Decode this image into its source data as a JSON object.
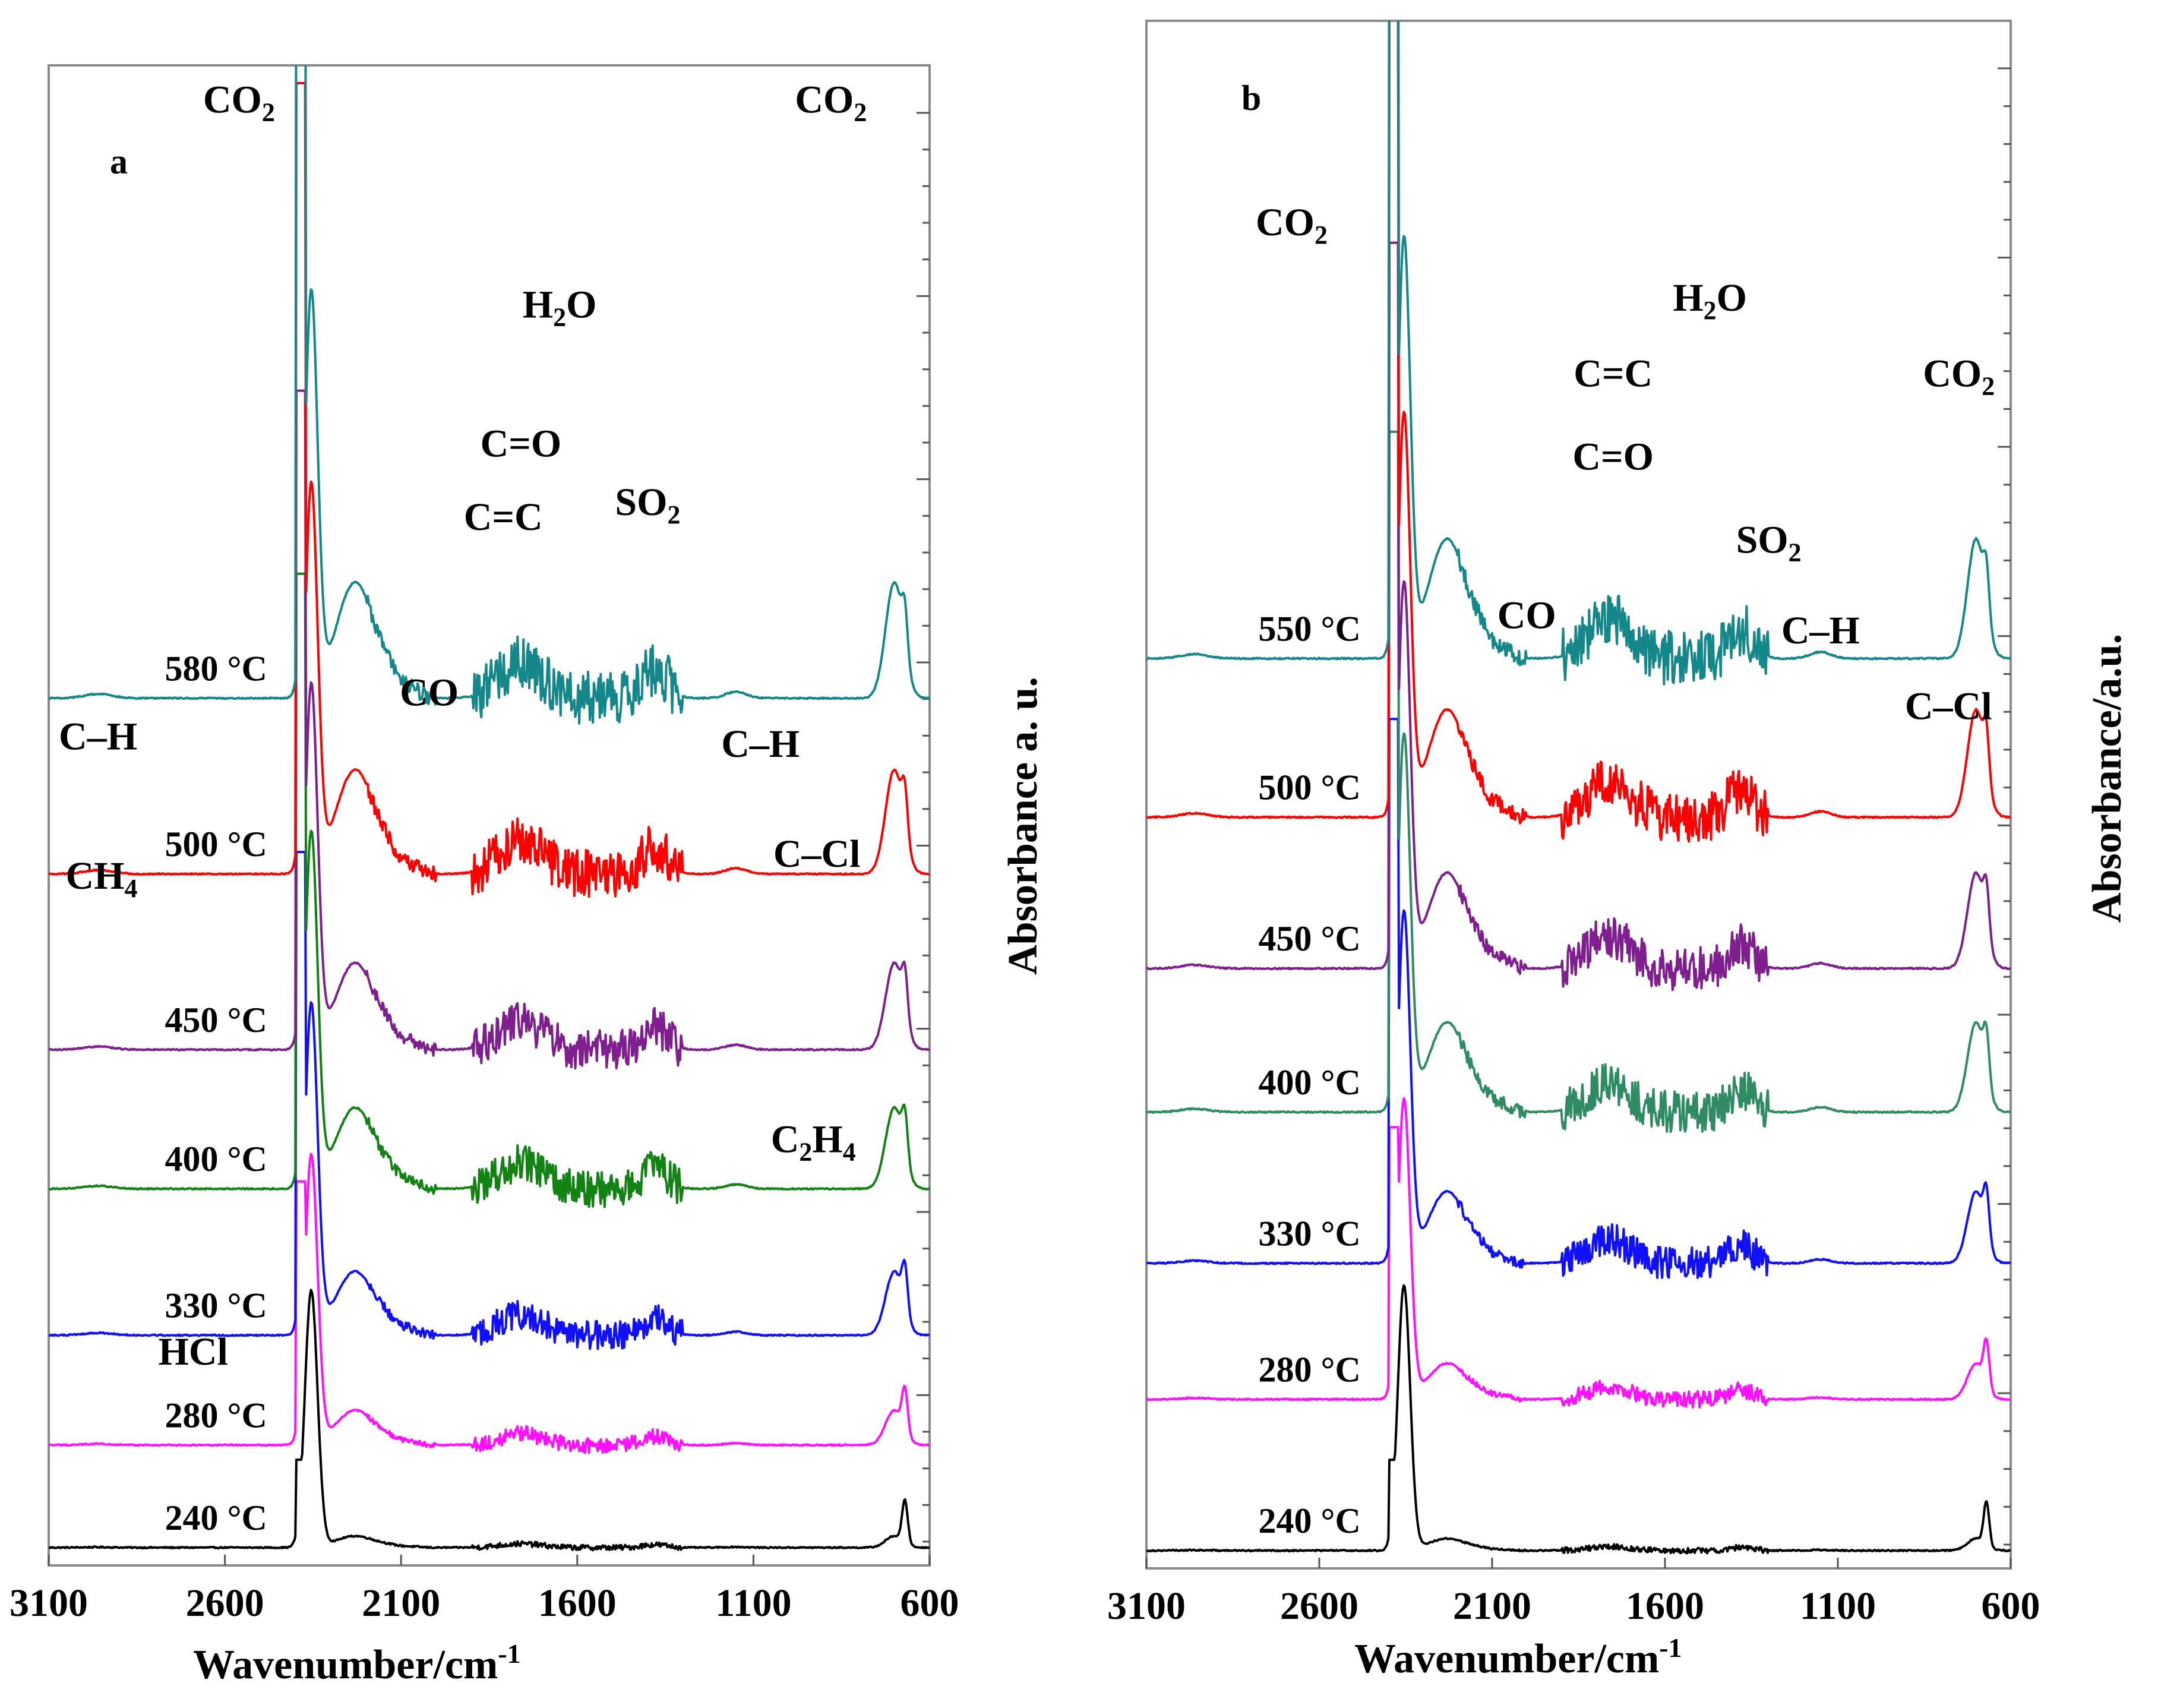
{
  "chart_data": [
    {
      "panel": "a",
      "type": "line",
      "xlabel_main": "Wavenumber/cm",
      "xlabel_sup": "-1",
      "ylabel": "Absorbance a. u.",
      "xlim": [
        3100,
        600
      ],
      "xticks": [
        "3100",
        "2600",
        "2100",
        "1600",
        "1100",
        "600"
      ],
      "series": [
        {
          "name": "580 °C",
          "color": "#14878a",
          "baseline": 0.58,
          "scale": 1.0
        },
        {
          "name": "500 °C",
          "color": "#ff0000",
          "baseline": 0.46,
          "scale": 0.9
        },
        {
          "name": "450 °C",
          "color": "#7f1e8f",
          "baseline": 0.34,
          "scale": 0.75
        },
        {
          "name": "400 °C",
          "color": "#128312",
          "baseline": 0.245,
          "scale": 0.7
        },
        {
          "name": "330 °C",
          "color": "#1010ff",
          "baseline": 0.145,
          "scale": 0.55
        },
        {
          "name": "280 °C",
          "color": "#ff10ff",
          "baseline": 0.07,
          "scale": 0.3
        },
        {
          "name": "240 °C",
          "color": "#000000",
          "baseline": 0.0,
          "scale": 0.1
        }
      ],
      "annotations": [
        {
          "text": "CO",
          "sub": "2",
          "wn": 2560,
          "level": 0.98
        },
        {
          "text": "CO",
          "sub": "2",
          "wn": 880,
          "level": 0.98
        },
        {
          "text": "H",
          "sub": "2",
          "post": "O",
          "wn": 1650,
          "level": 0.84
        },
        {
          "text": "C=O",
          "wn": 1760,
          "level": 0.745
        },
        {
          "text": "C=C",
          "wn": 1810,
          "level": 0.695
        },
        {
          "text": "SO",
          "sub": "2",
          "wn": 1400,
          "level": 0.705
        },
        {
          "text": "CO",
          "wn": 2020,
          "level": 0.575
        },
        {
          "text": "C–H",
          "wn": 2960,
          "level": 0.545
        },
        {
          "text": "C–H",
          "wn": 1080,
          "level": 0.54
        },
        {
          "text": "CH",
          "sub": "4",
          "wn": 2950,
          "level": 0.45
        },
        {
          "text": "C–Cl",
          "wn": 920,
          "level": 0.465
        },
        {
          "text": "C",
          "sub": "2",
          "post": "H",
          "sub2": "4",
          "wn": 930,
          "level": 0.27
        },
        {
          "text": "HCl",
          "wn": 2690,
          "level": 0.125
        }
      ]
    },
    {
      "panel": "b",
      "type": "line",
      "xlabel_main": "Wavenumber/cm",
      "xlabel_sup": "-1",
      "ylabel": "Absorbance/a.u.",
      "xlim": [
        3100,
        600
      ],
      "xticks": [
        "3100",
        "2600",
        "2100",
        "1600",
        "1100",
        "600"
      ],
      "series": [
        {
          "name": "550 °C",
          "color": "#14878a",
          "baseline": 0.59,
          "scale": 1.0
        },
        {
          "name": "500 °C",
          "color": "#ff0000",
          "baseline": 0.485,
          "scale": 0.9
        },
        {
          "name": "450 °C",
          "color": "#7f1e8f",
          "baseline": 0.385,
          "scale": 0.8
        },
        {
          "name": "400 °C",
          "color": "#2e8b62",
          "baseline": 0.29,
          "scale": 0.75
        },
        {
          "name": "330 °C",
          "color": "#1010ff",
          "baseline": 0.19,
          "scale": 0.6
        },
        {
          "name": "280 °C",
          "color": "#ff10ff",
          "baseline": 0.1,
          "scale": 0.3
        },
        {
          "name": "240 °C",
          "color": "#000000",
          "baseline": 0.0,
          "scale": 0.1
        }
      ],
      "annotations": [
        {
          "text": "CO",
          "sub": "2",
          "wn": 2680,
          "level": 0.87
        },
        {
          "text": "H",
          "sub": "2",
          "post": "O",
          "wn": 1470,
          "level": 0.82
        },
        {
          "text": "C=C",
          "wn": 1750,
          "level": 0.77
        },
        {
          "text": "C=O",
          "wn": 1750,
          "level": 0.715
        },
        {
          "text": "CO",
          "sub": "2",
          "wn": 750,
          "level": 0.77
        },
        {
          "text": "SO",
          "sub": "2",
          "wn": 1300,
          "level": 0.66
        },
        {
          "text": "CO",
          "wn": 2000,
          "level": 0.61
        },
        {
          "text": "C–H",
          "wn": 1150,
          "level": 0.6
        },
        {
          "text": "C–Cl",
          "wn": 780,
          "level": 0.55
        }
      ]
    }
  ]
}
